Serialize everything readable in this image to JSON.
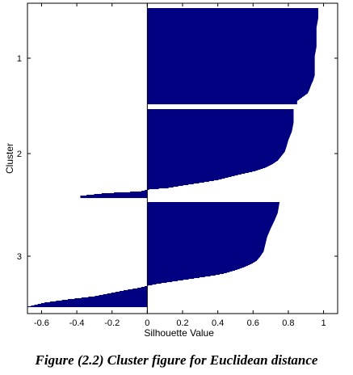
{
  "caption": "Figure (2.2) Cluster figure for Euclidean distance",
  "chart_data": {
    "type": "bar",
    "orientation": "horizontal",
    "xlabel": "Silhouette Value",
    "ylabel": "Cluster",
    "xlim": [
      -0.68,
      1.08
    ],
    "xticks": [
      -0.6,
      -0.4,
      -0.2,
      0,
      0.2,
      0.4,
      0.6,
      0.8,
      1
    ],
    "xtick_labels": [
      "-0.6",
      "-0.4",
      "-0.2",
      "0",
      "0.2",
      "0.4",
      "0.6",
      "0.8",
      "1"
    ],
    "yticks": [
      "1",
      "2",
      "3"
    ],
    "bar_color": "#000080",
    "background": "#ffffff",
    "clusters": [
      {
        "label": "1",
        "silhouette_profile": [
          [
            0.0,
            0.97
          ],
          [
            0.1,
            0.97
          ],
          [
            0.2,
            0.96
          ],
          [
            0.3,
            0.96
          ],
          [
            0.4,
            0.96
          ],
          [
            0.5,
            0.95
          ],
          [
            0.6,
            0.95
          ],
          [
            0.7,
            0.95
          ],
          [
            0.76,
            0.94
          ],
          [
            0.8,
            0.93
          ],
          [
            0.85,
            0.92
          ],
          [
            0.89,
            0.91
          ],
          [
            0.93,
            0.88
          ],
          [
            0.97,
            0.85
          ],
          [
            1.0,
            0.85
          ]
        ]
      },
      {
        "label": "2",
        "silhouette_profile": [
          [
            0.0,
            0.83
          ],
          [
            0.15,
            0.83
          ],
          [
            0.25,
            0.82
          ],
          [
            0.35,
            0.8
          ],
          [
            0.42,
            0.79
          ],
          [
            0.48,
            0.78
          ],
          [
            0.53,
            0.76
          ],
          [
            0.58,
            0.74
          ],
          [
            0.62,
            0.71
          ],
          [
            0.66,
            0.67
          ],
          [
            0.7,
            0.61
          ],
          [
            0.74,
            0.52
          ],
          [
            0.77,
            0.46
          ],
          [
            0.8,
            0.4
          ],
          [
            0.83,
            0.31
          ],
          [
            0.86,
            0.21
          ],
          [
            0.89,
            0.12
          ],
          [
            0.91,
            0.0
          ],
          [
            0.93,
            -0.04
          ],
          [
            0.95,
            -0.24
          ],
          [
            0.98,
            -0.38
          ],
          [
            1.0,
            -0.38
          ]
        ]
      },
      {
        "label": "3",
        "silhouette_profile": [
          [
            0.0,
            0.75
          ],
          [
            0.1,
            0.74
          ],
          [
            0.18,
            0.72
          ],
          [
            0.25,
            0.7
          ],
          [
            0.33,
            0.68
          ],
          [
            0.4,
            0.67
          ],
          [
            0.47,
            0.66
          ],
          [
            0.52,
            0.64
          ],
          [
            0.56,
            0.62
          ],
          [
            0.59,
            0.59
          ],
          [
            0.62,
            0.55
          ],
          [
            0.65,
            0.5
          ],
          [
            0.68,
            0.44
          ],
          [
            0.7,
            0.38
          ],
          [
            0.72,
            0.3
          ],
          [
            0.74,
            0.22
          ],
          [
            0.76,
            0.14
          ],
          [
            0.78,
            0.06
          ],
          [
            0.8,
            0.0
          ],
          [
            0.82,
            -0.05
          ],
          [
            0.84,
            -0.12
          ],
          [
            0.87,
            -0.21
          ],
          [
            0.9,
            -0.3
          ],
          [
            0.93,
            -0.45
          ],
          [
            0.96,
            -0.58
          ],
          [
            1.0,
            -0.68
          ]
        ]
      }
    ]
  }
}
